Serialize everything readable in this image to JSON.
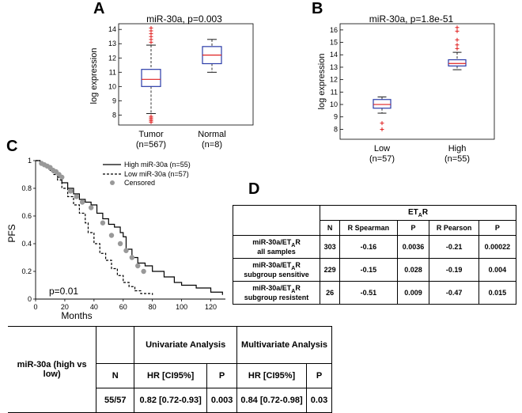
{
  "chart_data": [
    {
      "panel": "A",
      "type": "box",
      "title": "miR-30a, p=0.003",
      "ylabel": "log expression",
      "ylim": [
        7.3,
        14.4
      ],
      "yticks": [
        "8",
        "9",
        "10",
        "11",
        "12",
        "13",
        "14"
      ],
      "categories": [
        {
          "label": "Tumor",
          "n": "(n=567)",
          "min": 8.1,
          "q1": 10.0,
          "median": 10.5,
          "q3": 11.2,
          "max": 12.9,
          "outliers": [
            13.1,
            13.3,
            13.5,
            13.7,
            13.9,
            14.1,
            7.9,
            7.8,
            7.7,
            7.6,
            7.5
          ]
        },
        {
          "label": "Normal",
          "n": "(n=8)",
          "min": 11.0,
          "q1": 11.6,
          "median": 12.2,
          "q3": 12.8,
          "max": 13.3,
          "outliers": []
        }
      ]
    },
    {
      "panel": "B",
      "type": "box",
      "title": "miR-30a, p=1.8e-51",
      "ylabel": "log expression",
      "ylim": [
        7.2,
        16.5
      ],
      "yticks": [
        "8",
        "9",
        "10",
        "11",
        "12",
        "13",
        "14",
        "15",
        "16"
      ],
      "categories": [
        {
          "label": "Low",
          "n": "(n=57)",
          "min": 9.3,
          "q1": 9.7,
          "median": 10.0,
          "q3": 10.4,
          "max": 10.6,
          "outliers": [
            8.0,
            8.5
          ]
        },
        {
          "label": "High",
          "n": "(n=55)",
          "min": 12.8,
          "q1": 13.1,
          "median": 13.3,
          "q3": 13.6,
          "max": 14.2,
          "outliers": [
            14.5,
            14.8,
            15.2,
            15.9,
            16.2
          ]
        }
      ]
    },
    {
      "panel": "C",
      "type": "line",
      "ylabel": "PFS",
      "xlabel": "Months",
      "xlim": [
        0,
        130
      ],
      "ylim": [
        0,
        1
      ],
      "xticks": [
        "0",
        "20",
        "40",
        "60",
        "80",
        "100",
        "120"
      ],
      "yticks": [
        "0",
        "0.2",
        "0.4",
        "0.6",
        "0.8",
        "1"
      ],
      "annotation": "p=0.01",
      "legend": {
        "high": "High miR-30a (n=55)",
        "low": "Low  miR-30a (n=57)",
        "censored": "Censored"
      },
      "series": [
        {
          "name": "High miR-30a (n=55)",
          "style": "solid",
          "x": [
            0,
            3,
            6,
            9,
            12,
            15,
            18,
            22,
            26,
            30,
            34,
            38,
            42,
            46,
            50,
            54,
            58,
            60,
            62,
            66,
            70,
            75,
            80,
            88,
            95,
            100,
            110,
            120,
            128
          ],
          "y": [
            1,
            0.98,
            0.96,
            0.94,
            0.92,
            0.88,
            0.84,
            0.8,
            0.76,
            0.72,
            0.7,
            0.68,
            0.62,
            0.58,
            0.54,
            0.52,
            0.48,
            0.45,
            0.36,
            0.3,
            0.26,
            0.24,
            0.2,
            0.16,
            0.12,
            0.1,
            0.08,
            0.05,
            0.03
          ]
        },
        {
          "name": "Low  miR-30a (n=57)",
          "style": "dashed",
          "x": [
            0,
            3,
            6,
            9,
            12,
            15,
            18,
            22,
            26,
            30,
            34,
            36,
            40,
            44,
            48,
            52,
            56,
            60,
            64,
            68,
            72,
            80
          ],
          "y": [
            1,
            0.98,
            0.96,
            0.93,
            0.9,
            0.86,
            0.8,
            0.74,
            0.68,
            0.62,
            0.55,
            0.48,
            0.4,
            0.33,
            0.28,
            0.22,
            0.17,
            0.12,
            0.09,
            0.06,
            0.04,
            0.03
          ]
        }
      ],
      "censored": {
        "x": [
          4,
          6,
          8,
          10,
          12,
          14,
          16,
          18,
          24,
          28,
          32,
          38,
          46,
          52,
          58,
          62,
          66,
          70,
          74
        ],
        "y": [
          0.98,
          0.97,
          0.96,
          0.95,
          0.93,
          0.92,
          0.9,
          0.88,
          0.78,
          0.74,
          0.7,
          0.66,
          0.55,
          0.46,
          0.4,
          0.35,
          0.3,
          0.24,
          0.2
        ]
      }
    }
  ],
  "panels": {
    "a": "A",
    "b": "B",
    "c": "C",
    "d": "D"
  },
  "tableD": {
    "group_header": "ET",
    "group_header_sub": "A",
    "group_header_tail": "R",
    "headers": [
      "N",
      "R Spearman",
      "P",
      "R Pearson",
      "P"
    ],
    "rows": [
      {
        "label1": "miR-30a/ET",
        "label_sub": "A",
        "label_tail": "R",
        "label2": "all samples",
        "n": "303",
        "rs": "-0.16",
        "p1": "0.0036",
        "rp": "-0.21",
        "p2": "0.00022"
      },
      {
        "label1": "miR-30a/ET",
        "label_sub": "A",
        "label_tail": "R",
        "label2": "subgroup sensitive",
        "n": "229",
        "rs": "-0.15",
        "p1": "0.028",
        "rp": "-0.19",
        "p2": "0.004"
      },
      {
        "label1": "miR-30a/ET",
        "label_sub": "A",
        "label_tail": "R",
        "label2": "subgroup resistent",
        "n": "26",
        "rs": "-0.51",
        "p1": "0.009",
        "rp": "-0.47",
        "p2": "0.015"
      }
    ]
  },
  "tableE": {
    "row_label": "miR-30a (high vs low)",
    "univariate": "Univariate Analysis",
    "multivariate": "Multivariate Analysis",
    "n_header": "N",
    "hr_header": "HR [CI95%]",
    "p_header": "P",
    "n": "55/57",
    "uni_hr": "0.82 [0.72-0.93]",
    "uni_p": "0.003",
    "multi_hr": "0.84 [0.72-0.98]",
    "multi_p": "0.03"
  }
}
